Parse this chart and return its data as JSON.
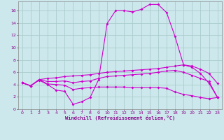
{
  "xlabel": "Windchill (Refroidissement éolien,°C)",
  "bg_color": "#cce8ec",
  "line_color": "#cc00cc",
  "grid_color": "#aacccc",
  "text_color": "#880088",
  "xlim": [
    -0.5,
    23.5
  ],
  "ylim": [
    0,
    17.5
  ],
  "xticks": [
    0,
    1,
    2,
    3,
    4,
    5,
    6,
    7,
    8,
    9,
    10,
    11,
    12,
    13,
    14,
    15,
    16,
    17,
    18,
    19,
    20,
    21,
    22,
    23
  ],
  "yticks": [
    0,
    2,
    4,
    6,
    8,
    10,
    12,
    14,
    16
  ],
  "series": [
    {
      "x": [
        0,
        1,
        2,
        3,
        4,
        5,
        6,
        7,
        8,
        9,
        10,
        11,
        12,
        13,
        14,
        15,
        16,
        17,
        18,
        19,
        20,
        21,
        22,
        23
      ],
      "y": [
        4.3,
        3.8,
        4.7,
        4.0,
        3.1,
        2.9,
        0.8,
        1.2,
        1.9,
        4.8,
        13.9,
        16.0,
        16.0,
        15.8,
        16.2,
        17.0,
        17.0,
        15.7,
        11.8,
        7.2,
        6.8,
        5.8,
        4.2,
        1.9
      ]
    },
    {
      "x": [
        0,
        1,
        2,
        3,
        4,
        5,
        6,
        7,
        8,
        9,
        10,
        11,
        12,
        13,
        14,
        15,
        16,
        17,
        18,
        19,
        20,
        21,
        22,
        23
      ],
      "y": [
        4.3,
        3.8,
        4.8,
        5.0,
        5.1,
        5.3,
        5.4,
        5.5,
        5.6,
        5.8,
        6.0,
        6.1,
        6.2,
        6.3,
        6.4,
        6.5,
        6.6,
        6.8,
        7.0,
        7.2,
        7.0,
        6.5,
        5.8,
        4.2
      ]
    },
    {
      "x": [
        0,
        1,
        2,
        3,
        4,
        5,
        6,
        7,
        8,
        9,
        10,
        11,
        12,
        13,
        14,
        15,
        16,
        17,
        18,
        19,
        20,
        21,
        22,
        23
      ],
      "y": [
        4.3,
        3.8,
        4.8,
        4.1,
        4.0,
        3.9,
        3.2,
        3.4,
        3.5,
        3.6,
        3.6,
        3.6,
        3.6,
        3.5,
        3.5,
        3.5,
        3.5,
        3.4,
        2.8,
        2.4,
        2.2,
        1.9,
        1.7,
        1.9
      ]
    },
    {
      "x": [
        0,
        1,
        2,
        3,
        4,
        5,
        6,
        7,
        8,
        9,
        10,
        11,
        12,
        13,
        14,
        15,
        16,
        17,
        18,
        19,
        20,
        21,
        22,
        23
      ],
      "y": [
        4.3,
        3.8,
        4.8,
        4.5,
        4.5,
        4.6,
        4.3,
        4.5,
        4.6,
        5.0,
        5.3,
        5.4,
        5.5,
        5.6,
        5.7,
        5.8,
        6.0,
        6.2,
        6.3,
        6.0,
        5.5,
        5.0,
        4.5,
        1.9
      ]
    }
  ]
}
